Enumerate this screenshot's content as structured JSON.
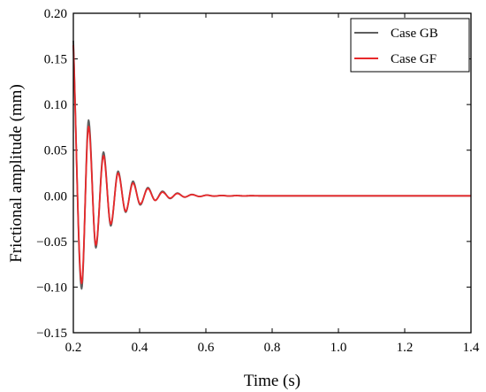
{
  "chart_data": {
    "type": "line",
    "xlabel": "Time (s)",
    "ylabel": "Frictional amplitude (mm)",
    "xlim": [
      0.2,
      1.4
    ],
    "ylim": [
      -0.15,
      0.2
    ],
    "x_ticks": [
      "0.2",
      "0.4",
      "0.6",
      "0.8",
      "1.0",
      "1.2",
      "1.4"
    ],
    "y_ticks": [
      "−0.15",
      "−0.10",
      "−0.05",
      "0.00",
      "0.05",
      "0.10",
      "0.15",
      "0.20"
    ],
    "grid": false,
    "legend_position": "top-right",
    "series": [
      {
        "name": "Case GB",
        "color": "#5f5f5f",
        "x": [
          0.2,
          0.225,
          0.246,
          0.268,
          0.291,
          0.313,
          0.335,
          0.358,
          0.38,
          0.402,
          0.425,
          0.447,
          0.469,
          0.492,
          0.514,
          0.536,
          0.558,
          0.581,
          0.603,
          0.625,
          0.648,
          0.67,
          0.692,
          0.715,
          0.737,
          0.759,
          0.782,
          0.8,
          1.0,
          1.2,
          1.4
        ],
        "y": [
          0.17,
          -0.102,
          0.083,
          -0.057,
          0.048,
          -0.033,
          0.027,
          -0.018,
          0.016,
          -0.01,
          0.009,
          -0.005,
          0.005,
          -0.003,
          0.003,
          -0.0015,
          0.0015,
          -0.0008,
          0.0008,
          -0.0004,
          0.0004,
          -0.0002,
          0.0002,
          -0.0001,
          0.0001,
          0.0,
          0.0,
          0.0,
          0.0,
          0.0,
          0.0
        ]
      },
      {
        "name": "Case GF",
        "color": "#e8292b",
        "x": [
          0.2,
          0.225,
          0.246,
          0.268,
          0.291,
          0.313,
          0.335,
          0.358,
          0.38,
          0.402,
          0.425,
          0.447,
          0.469,
          0.492,
          0.514,
          0.536,
          0.558,
          0.581,
          0.603,
          0.625,
          0.648,
          0.67,
          0.692,
          0.715,
          0.737,
          0.759,
          0.782,
          0.8,
          1.0,
          1.2,
          1.4
        ],
        "y": [
          0.165,
          -0.096,
          0.076,
          -0.054,
          0.044,
          -0.031,
          0.025,
          -0.017,
          0.014,
          -0.009,
          0.008,
          -0.005,
          0.004,
          -0.0025,
          0.0025,
          -0.0013,
          0.0013,
          -0.0007,
          0.0007,
          -0.0003,
          0.0003,
          -0.0002,
          0.0002,
          -0.0001,
          0.0001,
          0.0,
          0.0,
          0.0,
          0.0,
          0.0,
          0.0
        ]
      }
    ]
  }
}
